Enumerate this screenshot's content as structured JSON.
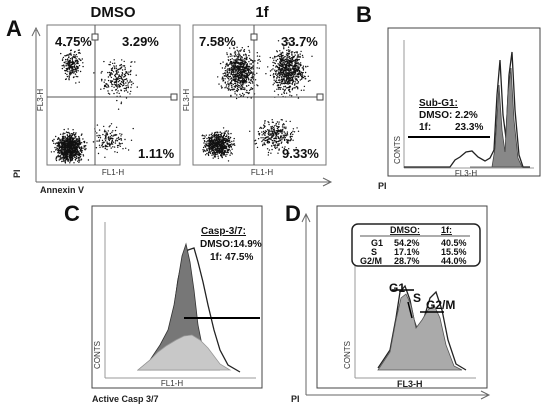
{
  "panels": {
    "a": {
      "letter": "A",
      "plots": [
        {
          "title": "DMSO",
          "ul": "4.75%",
          "ur": "3.29%",
          "lr": "1.11%"
        },
        {
          "title": "1f",
          "ul": "7.58%",
          "ur": "33.7%",
          "lr": "9.33%"
        }
      ],
      "ytick": "FL3-H",
      "xtick": "FL1-H",
      "yaxis": "PI",
      "xaxis": "Annexin V"
    },
    "b": {
      "letter": "B",
      "legend_title": "Sub-G1:",
      "legend_rows": [
        {
          "label": "DMSO:",
          "value": "2.2%"
        },
        {
          "label": "1f:",
          "value": "23.3%"
        }
      ],
      "ylabel": "CONTS",
      "xtick": "FL3-H",
      "xaxis": "PI"
    },
    "c": {
      "letter": "C",
      "legend_title": "Casp-3/7:",
      "legend_rows": [
        "DMSO:14.9%",
        "1f: 47.5%"
      ],
      "ylabel": "CONTS",
      "xtick": "FL1-H",
      "xaxis": "Active Casp 3/7"
    },
    "d": {
      "letter": "D",
      "table_headers": [
        "",
        "DMSO:",
        "1f:"
      ],
      "table_rows": [
        [
          "G1",
          "54.2%",
          "40.5%"
        ],
        [
          "S",
          "17.1%",
          "15.5%"
        ],
        [
          "G2/M",
          "28.7%",
          "44.0%"
        ]
      ],
      "peak_labels": {
        "g1": "G1",
        "s": "S",
        "g2m": "G2/M"
      },
      "ylabel": "CONTS",
      "xtick": "FL3-H",
      "xaxis": "PI"
    }
  }
}
